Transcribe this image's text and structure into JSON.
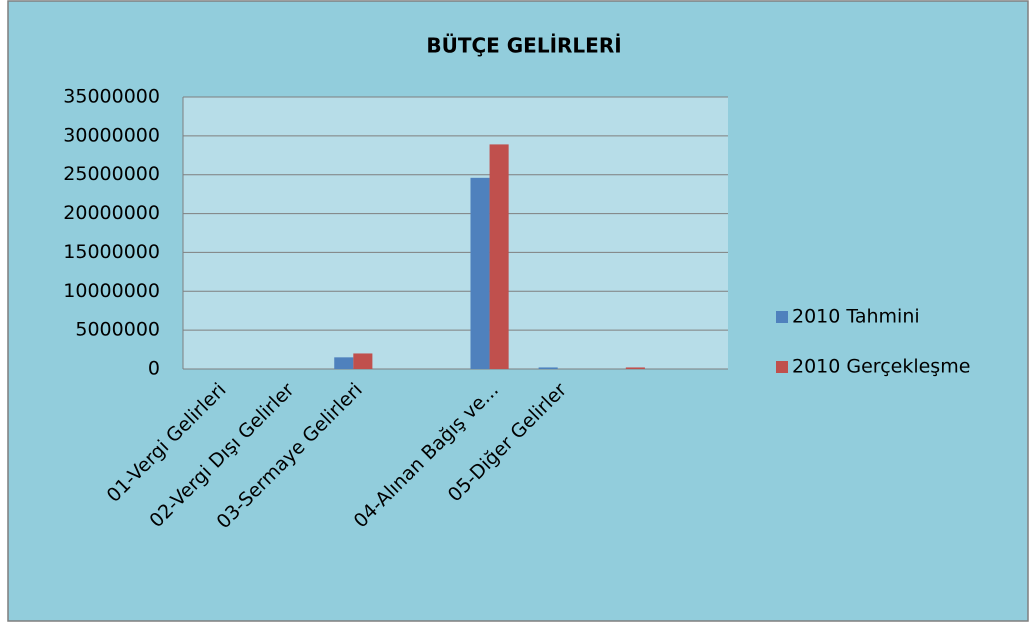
{
  "chart_data": {
    "type": "bar",
    "title": "BÜTÇE GELİRLERİ",
    "categories": [
      "01-Vergi Gelirleri",
      "02-Vergi Dışı Gelirler",
      "03-Sermaye Gelirleri",
      null,
      "04-Alınan Bağış ve...",
      "05-Diğer Gelirler",
      null,
      null
    ],
    "series": [
      {
        "name": "2010 Tahmini",
        "color": "#4f81bd",
        "values": [
          0,
          0,
          1500000,
          0,
          24600000,
          200000,
          0,
          0
        ]
      },
      {
        "name": "2010 Gerçekleşme",
        "color": "#c0504d",
        "values": [
          0,
          0,
          2000000,
          0,
          28900000,
          0,
          200000,
          0
        ]
      }
    ],
    "ylim": [
      0,
      35000000
    ],
    "yticks": [
      0,
      5000000,
      10000000,
      15000000,
      20000000,
      25000000,
      30000000,
      35000000
    ],
    "grid": true,
    "legend": "right"
  }
}
